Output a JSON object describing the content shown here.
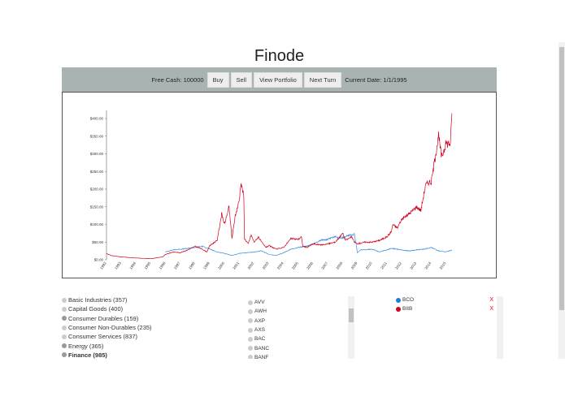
{
  "app": {
    "title": "Finode"
  },
  "toolbar": {
    "free_cash_label": "Free Cash: 100000",
    "buy": "Buy",
    "sell": "Sell",
    "view_portfolio": "View Portfolio",
    "next_turn": "Next Turn",
    "current_date_label": "Current Date: 1/1/1995"
  },
  "sectors": [
    {
      "label": "Basic Industries (357)",
      "color": "#cccccc",
      "bold": false
    },
    {
      "label": "Capital Goods (400)",
      "color": "#cccccc",
      "bold": false
    },
    {
      "label": "Consumer Durables (159)",
      "color": "#999999",
      "bold": false
    },
    {
      "label": "Consumer Non-Durables (235)",
      "color": "#cccccc",
      "bold": false
    },
    {
      "label": "Consumer Services (837)",
      "color": "#cccccc",
      "bold": false
    },
    {
      "label": "Energy (365)",
      "color": "#999999",
      "bold": false
    },
    {
      "label": "Finance (985)",
      "color": "#999999",
      "bold": true
    }
  ],
  "stocks": [
    "AVV",
    "AWH",
    "AXP",
    "AXS",
    "BAC",
    "BANC",
    "BANF"
  ],
  "portfolio": [
    {
      "ticker": "BCO",
      "color": "#1e7be0",
      "remove": "X"
    },
    {
      "ticker": "BIIB",
      "color": "#d0021b",
      "remove": "X"
    }
  ],
  "chart_data": {
    "type": "line",
    "title": "",
    "xlabel": "",
    "ylabel": "",
    "xlim": [
      1992,
      2015.5
    ],
    "ylim": [
      0,
      410
    ],
    "x_ticks": [
      "1992",
      "1993",
      "1994",
      "1995",
      "1996",
      "1997",
      "1998",
      "1999",
      "2000",
      "2001",
      "2002",
      "2003",
      "2004",
      "2005",
      "2006",
      "2007",
      "2008",
      "2009",
      "2010",
      "2011",
      "2012",
      "2013",
      "2014",
      "2015"
    ],
    "y_ticks": [
      "$0.00",
      "$50.00",
      "$100.00",
      "$150.00",
      "$200.00",
      "$250.00",
      "$300.00",
      "$350.00",
      "$400.00"
    ],
    "series": [
      {
        "name": "BIIB",
        "color": "#d0021b",
        "points": [
          [
            1992,
            18
          ],
          [
            1992.3,
            12
          ],
          [
            1993,
            8
          ],
          [
            1994,
            5
          ],
          [
            1995,
            3
          ],
          [
            1995.8,
            8
          ],
          [
            1996,
            15
          ],
          [
            1996.5,
            22
          ],
          [
            1997,
            20
          ],
          [
            1997.5,
            28
          ],
          [
            1998,
            38
          ],
          [
            1998.5,
            30
          ],
          [
            1998.8,
            22
          ],
          [
            1999,
            40
          ],
          [
            1999.5,
            55
          ],
          [
            1999.8,
            130
          ],
          [
            2000,
            100
          ],
          [
            2000.3,
            150
          ],
          [
            2000.5,
            60
          ],
          [
            2000.7,
            120
          ],
          [
            2001,
            170
          ],
          [
            2001.1,
            220
          ],
          [
            2001.3,
            180
          ],
          [
            2001.35,
            60
          ],
          [
            2001.6,
            45
          ],
          [
            2001.8,
            70
          ],
          [
            2002,
            50
          ],
          [
            2002.3,
            65
          ],
          [
            2002.5,
            50
          ],
          [
            2002.8,
            35
          ],
          [
            2003,
            40
          ],
          [
            2003.5,
            30
          ],
          [
            2004,
            35
          ],
          [
            2004.5,
            60
          ],
          [
            2005,
            58
          ],
          [
            2005.2,
            65
          ],
          [
            2005.3,
            38
          ],
          [
            2005.6,
            35
          ],
          [
            2006,
            45
          ],
          [
            2006.5,
            42
          ],
          [
            2007,
            45
          ],
          [
            2007.5,
            50
          ],
          [
            2008,
            75
          ],
          [
            2008.2,
            55
          ],
          [
            2008.6,
            65
          ],
          [
            2008.8,
            50
          ],
          [
            2009,
            45
          ],
          [
            2009.5,
            50
          ],
          [
            2010,
            50
          ],
          [
            2010.5,
            55
          ],
          [
            2011,
            65
          ],
          [
            2011.3,
            80
          ],
          [
            2011.4,
            100
          ],
          [
            2011.7,
            90
          ],
          [
            2012,
            115
          ],
          [
            2012.5,
            130
          ],
          [
            2013,
            150
          ],
          [
            2013.3,
            140
          ],
          [
            2013.6,
            210
          ],
          [
            2013.8,
            220
          ],
          [
            2014,
            220
          ],
          [
            2014.3,
            300
          ],
          [
            2014.5,
            350
          ],
          [
            2014.7,
            290
          ],
          [
            2015,
            330
          ],
          [
            2015.3,
            330
          ],
          [
            2015.4,
            415
          ]
        ]
      },
      {
        "name": "BCO",
        "color": "#3d8fe0",
        "points": [
          [
            1996,
            22
          ],
          [
            1996.5,
            28
          ],
          [
            1997,
            30
          ],
          [
            1997.5,
            32
          ],
          [
            1998,
            35
          ],
          [
            1998.5,
            38
          ],
          [
            1999,
            30
          ],
          [
            1999.5,
            22
          ],
          [
            2000,
            18
          ],
          [
            2000.5,
            12
          ],
          [
            2001,
            18
          ],
          [
            2001.5,
            20
          ],
          [
            2002,
            22
          ],
          [
            2002.5,
            25
          ],
          [
            2003,
            15
          ],
          [
            2003.5,
            12
          ],
          [
            2004,
            20
          ],
          [
            2004.5,
            30
          ],
          [
            2005,
            35
          ],
          [
            2005.5,
            38
          ],
          [
            2006,
            45
          ],
          [
            2006.5,
            55
          ],
          [
            2007,
            58
          ],
          [
            2007.5,
            65
          ],
          [
            2008,
            62
          ],
          [
            2008.5,
            70
          ],
          [
            2008.8,
            72
          ],
          [
            2009,
            20
          ],
          [
            2009.2,
            28
          ],
          [
            2010,
            30
          ],
          [
            2010.5,
            22
          ],
          [
            2011,
            28
          ],
          [
            2011.3,
            32
          ],
          [
            2012,
            28
          ],
          [
            2012.5,
            25
          ],
          [
            2013,
            28
          ],
          [
            2013.5,
            30
          ],
          [
            2014,
            35
          ],
          [
            2014.5,
            25
          ],
          [
            2015,
            22
          ],
          [
            2015.4,
            28
          ]
        ]
      }
    ]
  }
}
